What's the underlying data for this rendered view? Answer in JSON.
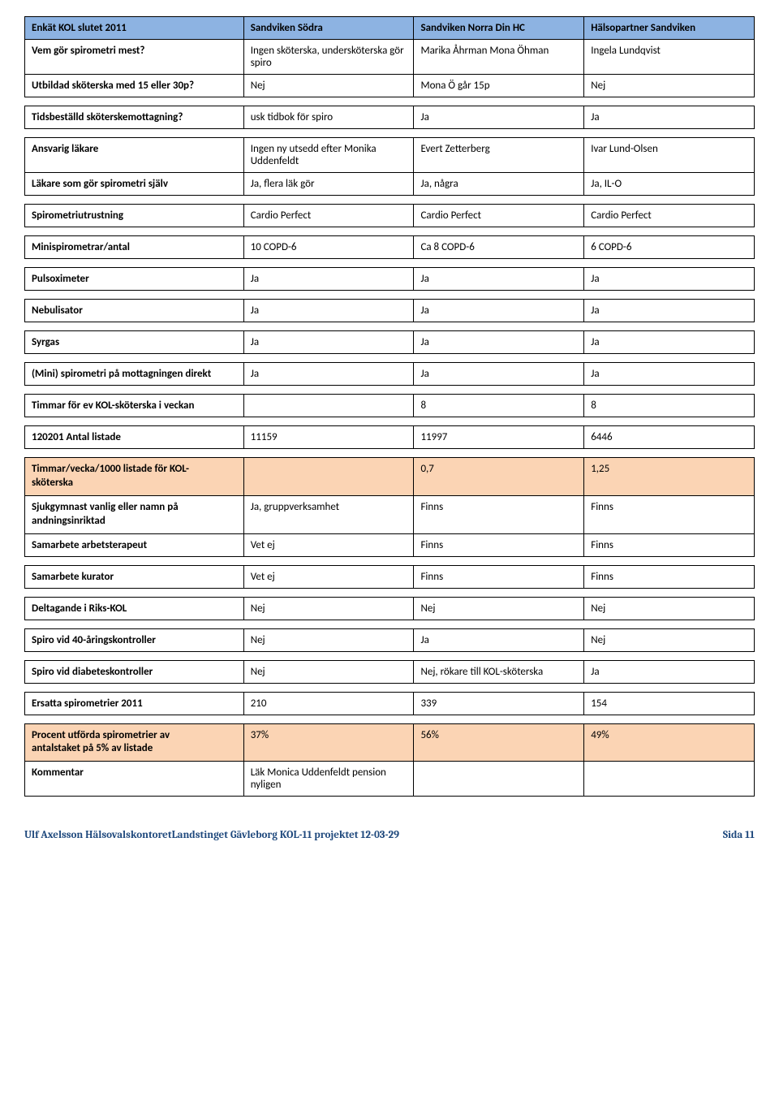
{
  "header": {
    "title": "Enkät KOL slutet 2011",
    "col1": "Sandviken Södra",
    "col2": "Sandviken Norra Din HC",
    "col3": "Hälsopartner Sandviken"
  },
  "rows": {
    "vem_gor_spiro": {
      "label": "Vem gör spirometri mest?",
      "c1": "Ingen sköterska, undersköterska gör spiro",
      "c2": "Marika Åhrman Mona Öhman",
      "c3": "Ingela Lundqvist"
    },
    "utbildad": {
      "label": "Utbildad sköterska med 15 eller 30p?",
      "c1": "Nej",
      "c2": "Mona Ö går 15p",
      "c3": "Nej"
    },
    "tidsbest": {
      "label": "Tidsbeställd sköterskemottagning?",
      "c1": "usk tidbok för spiro",
      "c2": "Ja",
      "c3": "Ja"
    },
    "ansvarig": {
      "label": "Ansvarig läkare",
      "c1": "Ingen ny utsedd efter Monika Uddenfeldt",
      "c2": "Evert Zetterberg",
      "c3": "Ivar Lund-Olsen"
    },
    "lakare_sjalv": {
      "label": "Läkare som gör spirometri själv",
      "c1": "Ja, flera läk gör",
      "c2": "Ja, några",
      "c3": "Ja, IL-O"
    },
    "utrustning": {
      "label": "Spirometriutrustning",
      "c1": "Cardio Perfect",
      "c2": "Cardio Perfect",
      "c3": "Cardio Perfect"
    },
    "minispiro": {
      "label": "Minispirometrar/antal",
      "c1": "10 COPD-6",
      "c2": "Ca 8 COPD-6",
      "c3": "6 COPD-6"
    },
    "pulsox": {
      "label": "Pulsoximeter",
      "c1": "Ja",
      "c2": "Ja",
      "c3": "Ja"
    },
    "nebulisator": {
      "label": "Nebulisator",
      "c1": "Ja",
      "c2": "Ja",
      "c3": "Ja"
    },
    "syrgas": {
      "label": "Syrgas",
      "c1": "Ja",
      "c2": "Ja",
      "c3": "Ja"
    },
    "minispiro_direkt": {
      "label": "(Mini) spirometri på mottagningen direkt",
      "c1": "Ja",
      "c2": "Ja",
      "c3": "Ja"
    },
    "timmar_veckan": {
      "label": "Timmar för ev KOL-sköterska i veckan",
      "c1": "",
      "c2": "8",
      "c3": "8"
    },
    "antal_listade": {
      "label": "120201 Antal listade",
      "c1": "11159",
      "c2": "11997",
      "c3": "6446"
    },
    "timmar_per_1000": {
      "label_line1": "Timmar/vecka/1000 listade för KOL-",
      "label_line2": "sköterska",
      "c1": "",
      "c2": "0,7",
      "c3": "1,25"
    },
    "sjukgymnast": {
      "label_line1": "Sjukgymnast vanlig eller namn på",
      "label_line2": "andningsinriktad",
      "c1": "Ja, gruppverksamhet",
      "c2": "Finns",
      "c3": "Finns"
    },
    "arbetsterapeut": {
      "label": "Samarbete arbetsterapeut",
      "c1": "Vet ej",
      "c2": "Finns",
      "c3": "Finns"
    },
    "kurator": {
      "label": "Samarbete kurator",
      "c1": "Vet ej",
      "c2": "Finns",
      "c3": "Finns"
    },
    "riks_kol": {
      "label": "Deltagande i Riks-KOL",
      "c1": "Nej",
      "c2": "Nej",
      "c3": "Nej"
    },
    "spiro_40": {
      "label": "Spiro vid 40-åringskontroller",
      "c1": "Nej",
      "c2": "Ja",
      "c3": "Nej"
    },
    "spiro_diabetes": {
      "label": "Spiro vid diabeteskontroller",
      "c1": "Nej",
      "c2": "Nej, rökare till KOL-sköterska",
      "c3": "Ja"
    },
    "ersatta": {
      "label": "Ersatta spirometrier 2011",
      "c1": "210",
      "c2": "339",
      "c3": "154"
    },
    "procent": {
      "label_line1": "Procent utförda spirometrier av",
      "label_line2": "antalstaket på 5% av listade",
      "c1": "37%",
      "c2": "56%",
      "c3": "49%"
    },
    "kommentar": {
      "label": "Kommentar",
      "c1": "Läk Monica Uddenfeldt pension nyligen",
      "c2": "",
      "c3": ""
    }
  },
  "footer": {
    "left": "Ulf Axelsson HälsovalskontoretLandstinget Gävleborg KOL-11 projektet 12-03-29",
    "right": "Sida 11"
  }
}
